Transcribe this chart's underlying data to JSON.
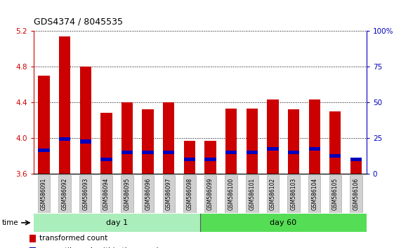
{
  "title": "GDS4374 / 8045535",
  "samples": [
    "GSM586091",
    "GSM586092",
    "GSM586093",
    "GSM586094",
    "GSM586095",
    "GSM586096",
    "GSM586097",
    "GSM586098",
    "GSM586099",
    "GSM586100",
    "GSM586101",
    "GSM586102",
    "GSM586103",
    "GSM586104",
    "GSM586105",
    "GSM586106"
  ],
  "transformed_count": [
    4.7,
    5.14,
    4.8,
    4.28,
    4.4,
    4.32,
    4.4,
    3.97,
    3.97,
    4.33,
    4.33,
    4.43,
    4.32,
    4.43,
    4.3,
    3.74
  ],
  "percentile_base": [
    3.84,
    3.97,
    3.94,
    3.74,
    3.82,
    3.82,
    3.82,
    3.74,
    3.74,
    3.82,
    3.82,
    3.86,
    3.82,
    3.86,
    3.78,
    3.74
  ],
  "percentile_height": [
    0.04,
    0.04,
    0.04,
    0.04,
    0.04,
    0.04,
    0.04,
    0.04,
    0.04,
    0.04,
    0.04,
    0.04,
    0.04,
    0.04,
    0.04,
    0.04
  ],
  "day1_count": 8,
  "day60_count": 8,
  "ylim": [
    3.6,
    5.2
  ],
  "yticks": [
    3.6,
    4.0,
    4.4,
    4.8,
    5.2
  ],
  "ytick_labels": [
    "3.6",
    "4.0",
    "4.4",
    "4.8",
    "5.2"
  ],
  "right_ytick_vals": [
    0,
    25,
    50,
    75,
    100
  ],
  "right_ytick_labels": [
    "0",
    "25",
    "50",
    "75",
    "100%"
  ],
  "bar_color": "#cc0000",
  "percentile_color": "#0000bb",
  "day1_color": "#aaeebb",
  "day60_color": "#55dd55",
  "left_tick_color": "#cc0000",
  "right_tick_color": "#0000bb",
  "bar_width": 0.55
}
